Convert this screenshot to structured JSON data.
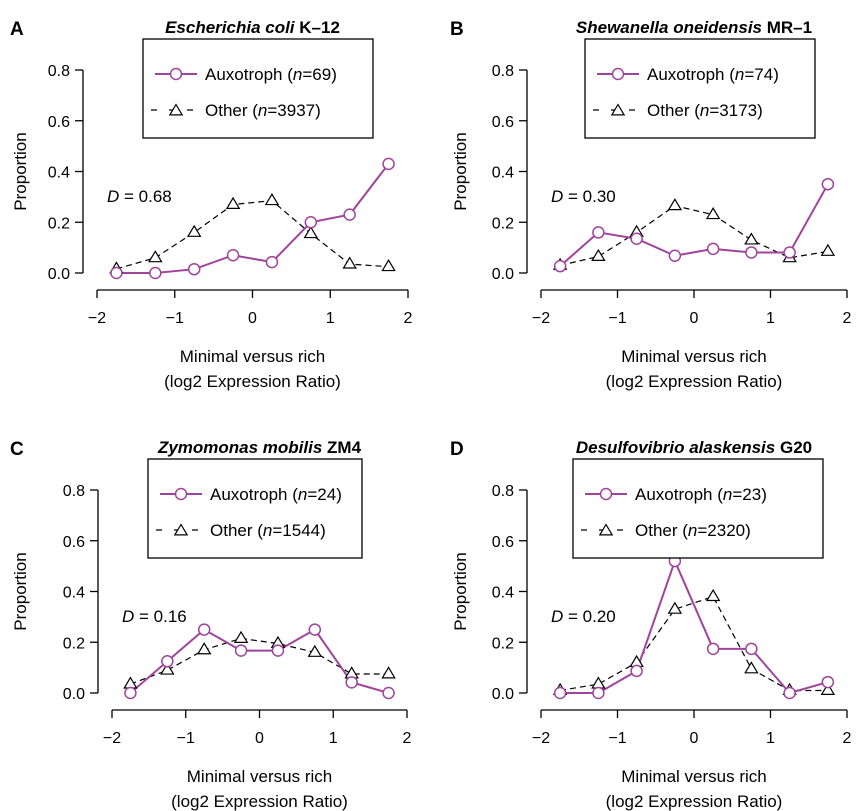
{
  "colors": {
    "auxotroph": "#a0449b",
    "other": "#000000",
    "axis": "#000000"
  },
  "chart_data": [
    {
      "type": "line",
      "panel_letter": "A",
      "title_italic": "Escherichia coli",
      "title_rest": " K–12",
      "xlabel_line1": "Minimal versus rich",
      "xlabel_line2": "(log2 Expression Ratio)",
      "ylabel": "Proportion",
      "xlim": [
        -2,
        2
      ],
      "ylim": [
        0,
        0.8
      ],
      "xticks": [
        -2,
        -1,
        0,
        1,
        2
      ],
      "xtick_labels": [
        "−2",
        "−1",
        "0",
        "1",
        "2"
      ],
      "yticks": [
        0,
        0.2,
        0.4,
        0.6,
        0.8
      ],
      "ytick_labels": [
        "0.0",
        "0.2",
        "0.4",
        "0.6",
        "0.8"
      ],
      "d_stat": "0.68",
      "x": [
        -1.75,
        -1.25,
        -0.75,
        -0.25,
        0.25,
        0.75,
        1.25,
        1.75
      ],
      "series": [
        {
          "label": "Auxotroph",
          "n": "69",
          "marker": "circle",
          "values": [
            0.0,
            0.0,
            0.015,
            0.07,
            0.043,
            0.2,
            0.23,
            0.43
          ]
        },
        {
          "label": "Other",
          "n": "3937",
          "marker": "triangle",
          "values": [
            0.016,
            0.06,
            0.16,
            0.27,
            0.285,
            0.155,
            0.035,
            0.025
          ]
        }
      ],
      "legend_position": "top"
    },
    {
      "type": "line",
      "panel_letter": "B",
      "title_italic": "Shewanella oneidensis",
      "title_rest": " MR–1",
      "xlabel_line1": "Minimal versus rich",
      "xlabel_line2": "(log2 Expression Ratio)",
      "ylabel": "Proportion",
      "xlim": [
        -2,
        2
      ],
      "ylim": [
        0,
        0.8
      ],
      "xticks": [
        -2,
        -1,
        0,
        1,
        2
      ],
      "xtick_labels": [
        "−2",
        "−1",
        "0",
        "1",
        "2"
      ],
      "yticks": [
        0,
        0.2,
        0.4,
        0.6,
        0.8
      ],
      "ytick_labels": [
        "0.0",
        "0.2",
        "0.4",
        "0.6",
        "0.8"
      ],
      "d_stat": "0.30",
      "x": [
        -1.75,
        -1.25,
        -0.75,
        -0.25,
        0.25,
        0.75,
        1.25,
        1.75
      ],
      "series": [
        {
          "label": "Auxotroph",
          "n": "74",
          "marker": "circle",
          "values": [
            0.027,
            0.16,
            0.135,
            0.068,
            0.095,
            0.081,
            0.081,
            0.35
          ]
        },
        {
          "label": "Other",
          "n": "3173",
          "marker": "triangle",
          "values": [
            0.03,
            0.065,
            0.16,
            0.265,
            0.23,
            0.13,
            0.06,
            0.085
          ]
        }
      ],
      "legend_position": "top"
    },
    {
      "type": "line",
      "panel_letter": "C",
      "title_italic": "Zymomonas mobilis",
      "title_rest": " ZM4",
      "xlabel_line1": "Minimal versus rich",
      "xlabel_line2": "(log2 Expression Ratio)",
      "ylabel": "Proportion",
      "xlim": [
        -2,
        2
      ],
      "ylim": [
        0,
        0.8
      ],
      "xticks": [
        -2,
        -1,
        0,
        1,
        2
      ],
      "xtick_labels": [
        "−2",
        "−1",
        "0",
        "1",
        "2"
      ],
      "yticks": [
        0,
        0.2,
        0.4,
        0.6,
        0.8
      ],
      "ytick_labels": [
        "0.0",
        "0.2",
        "0.4",
        "0.6",
        "0.8"
      ],
      "d_stat": "0.16",
      "x": [
        -1.75,
        -1.25,
        -0.75,
        -0.25,
        0.25,
        0.75,
        1.25,
        1.75
      ],
      "series": [
        {
          "label": "Auxotroph",
          "n": "24",
          "marker": "circle",
          "values": [
            0.0,
            0.125,
            0.25,
            0.167,
            0.167,
            0.25,
            0.042,
            0.0
          ]
        },
        {
          "label": "Other",
          "n": "1544",
          "marker": "triangle",
          "values": [
            0.035,
            0.09,
            0.17,
            0.215,
            0.195,
            0.16,
            0.075,
            0.075
          ]
        }
      ],
      "legend_position": "top"
    },
    {
      "type": "line",
      "panel_letter": "D",
      "title_italic": "Desulfovibrio alaskensis",
      "title_rest": " G20",
      "xlabel_line1": "Minimal versus rich",
      "xlabel_line2": "(log2 Expression Ratio)",
      "ylabel": "Proportion",
      "xlim": [
        -2,
        2
      ],
      "ylim": [
        0,
        0.8
      ],
      "xticks": [
        -2,
        -1,
        0,
        1,
        2
      ],
      "xtick_labels": [
        "−2",
        "−1",
        "0",
        "1",
        "2"
      ],
      "yticks": [
        0,
        0.2,
        0.4,
        0.6,
        0.8
      ],
      "ytick_labels": [
        "0.0",
        "0.2",
        "0.4",
        "0.6",
        "0.8"
      ],
      "d_stat": "0.20",
      "x": [
        -1.75,
        -1.25,
        -0.75,
        -0.25,
        0.25,
        0.75,
        1.25,
        1.75
      ],
      "series": [
        {
          "label": "Auxotroph",
          "n": "23",
          "marker": "circle",
          "values": [
            0.0,
            0.0,
            0.087,
            0.52,
            0.174,
            0.174,
            0.0,
            0.043
          ]
        },
        {
          "label": "Other",
          "n": "2320",
          "marker": "triangle",
          "values": [
            0.01,
            0.035,
            0.12,
            0.33,
            0.38,
            0.095,
            0.01,
            0.01
          ]
        }
      ],
      "legend_position": "top"
    }
  ]
}
